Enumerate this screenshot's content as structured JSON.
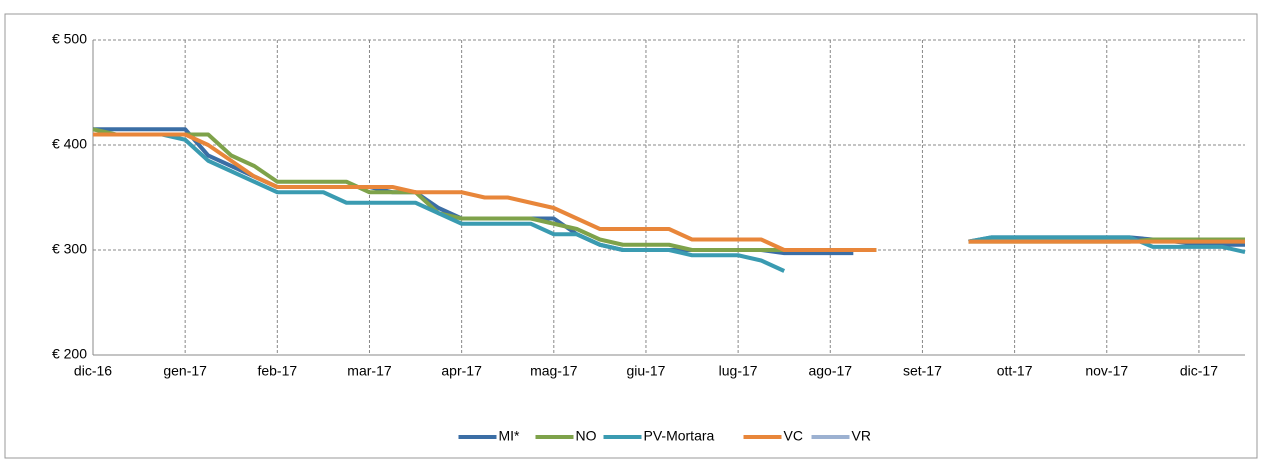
{
  "chart_data": {
    "type": "line",
    "x": [
      0,
      0.25,
      0.5,
      0.75,
      1,
      1.25,
      1.5,
      1.75,
      2,
      2.25,
      2.5,
      2.75,
      3,
      3.25,
      3.5,
      3.75,
      4,
      4.25,
      4.5,
      4.75,
      5,
      5.25,
      5.5,
      5.75,
      6,
      6.25,
      6.5,
      6.75,
      7,
      7.25,
      7.5,
      7.75,
      8,
      8.25,
      8.5,
      8.75,
      9,
      9.25,
      9.5,
      9.75,
      10,
      10.25,
      10.5,
      10.75,
      11,
      11.25,
      11.5,
      11.75,
      12,
      12.25,
      12.5
    ],
    "xlim": [
      0,
      12.5
    ],
    "xticks": [
      {
        "value": 0,
        "label": "dic-16"
      },
      {
        "value": 1,
        "label": "gen-17"
      },
      {
        "value": 2,
        "label": "feb-17"
      },
      {
        "value": 3,
        "label": "mar-17"
      },
      {
        "value": 4,
        "label": "apr-17"
      },
      {
        "value": 5,
        "label": "mag-17"
      },
      {
        "value": 6,
        "label": "giu-17"
      },
      {
        "value": 7,
        "label": "lug-17"
      },
      {
        "value": 8,
        "label": "ago-17"
      },
      {
        "value": 9,
        "label": "set-17"
      },
      {
        "value": 10,
        "label": "ott-17"
      },
      {
        "value": 11,
        "label": "nov-17"
      },
      {
        "value": 12,
        "label": "dic-17"
      }
    ],
    "ylim": [
      200,
      500
    ],
    "yticks": [
      {
        "value": 200,
        "label": "€ 200"
      },
      {
        "value": 300,
        "label": "€ 300"
      },
      {
        "value": 400,
        "label": "€ 400"
      },
      {
        "value": 500,
        "label": "€ 500"
      }
    ],
    "grid": true,
    "legend": "bottom",
    "series": [
      {
        "name": "MI*",
        "color": "#3b6ea5",
        "values": [
          415,
          415,
          415,
          415,
          415,
          390,
          380,
          370,
          360,
          360,
          360,
          360,
          360,
          355,
          355,
          340,
          330,
          330,
          330,
          330,
          330,
          315,
          305,
          300,
          300,
          300,
          300,
          300,
          300,
          300,
          297,
          297,
          297,
          297,
          null,
          null,
          null,
          null,
          308,
          312,
          312,
          312,
          312,
          312,
          312,
          312,
          310,
          308,
          305,
          305,
          305
        ]
      },
      {
        "name": "NO",
        "color": "#7ea24a",
        "values": [
          415,
          410,
          410,
          410,
          410,
          410,
          390,
          380,
          365,
          365,
          365,
          365,
          355,
          355,
          355,
          335,
          330,
          330,
          330,
          330,
          325,
          320,
          310,
          305,
          305,
          305,
          300,
          300,
          300,
          300,
          300,
          300,
          300,
          300,
          300,
          null,
          null,
          null,
          308,
          308,
          308,
          308,
          308,
          308,
          308,
          308,
          310,
          310,
          310,
          310,
          310
        ]
      },
      {
        "name": "PV-Mortara",
        "color": "#3a9bb1",
        "values": [
          410,
          410,
          410,
          410,
          405,
          385,
          375,
          365,
          355,
          355,
          355,
          345,
          345,
          345,
          345,
          335,
          325,
          325,
          325,
          325,
          315,
          315,
          305,
          300,
          300,
          300,
          295,
          295,
          295,
          290,
          280,
          null,
          null,
          null,
          null,
          null,
          null,
          null,
          308,
          312,
          312,
          312,
          312,
          312,
          312,
          312,
          303,
          303,
          303,
          303,
          298
        ]
      },
      {
        "name": "VC",
        "color": "#e8863a",
        "values": [
          410,
          410,
          410,
          410,
          410,
          400,
          385,
          370,
          360,
          360,
          360,
          360,
          360,
          360,
          355,
          355,
          355,
          350,
          350,
          345,
          340,
          330,
          320,
          320,
          320,
          320,
          310,
          310,
          310,
          310,
          300,
          300,
          300,
          300,
          300,
          null,
          null,
          null,
          308,
          308,
          308,
          308,
          308,
          308,
          308,
          308,
          308,
          308,
          308,
          308,
          308
        ]
      },
      {
        "name": "VR",
        "color": "#9cb1d1",
        "values": [
          null,
          null,
          null,
          null,
          null,
          null,
          null,
          null,
          null,
          null,
          null,
          null,
          null,
          null,
          null,
          null,
          null,
          null,
          null,
          null,
          null,
          null,
          null,
          null,
          null,
          null,
          null,
          null,
          null,
          null,
          null,
          null,
          null,
          null,
          null,
          null,
          null,
          null,
          null,
          null,
          null,
          null,
          null,
          null,
          null,
          null,
          null,
          null,
          null,
          null,
          null
        ]
      }
    ]
  }
}
